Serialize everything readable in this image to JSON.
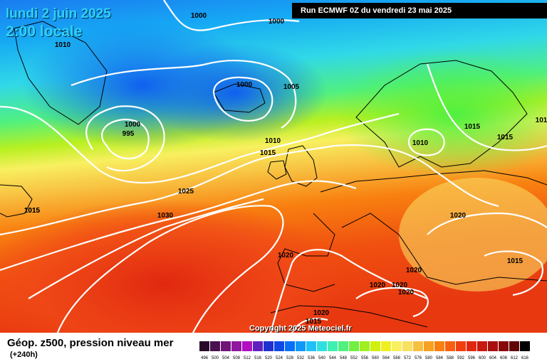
{
  "header": {
    "date": "lundi 2 juin 2025",
    "time": "2:00 locale",
    "run": "Run ECMWF 0Z du vendredi 23 mai 2025"
  },
  "copyright": "Copyright 2025 Meteociel.fr",
  "footer": {
    "title": "Géop. z500, pression niveau mer",
    "subtitle": "(+240h)"
  },
  "legend": {
    "values": [
      "496",
      "500",
      "504",
      "508",
      "512",
      "516",
      "520",
      "524",
      "528",
      "532",
      "536",
      "540",
      "544",
      "548",
      "552",
      "556",
      "560",
      "564",
      "568",
      "572",
      "576",
      "580",
      "584",
      "588",
      "592",
      "596",
      "600",
      "604",
      "608",
      "612",
      "616"
    ],
    "colors": [
      "#2a0a2a",
      "#4a1050",
      "#701478",
      "#9018a0",
      "#b010c0",
      "#6020c0",
      "#2030d0",
      "#1048e8",
      "#0870f8",
      "#1098f8",
      "#20c0f8",
      "#30e0e0",
      "#40f0b0",
      "#50f080",
      "#70f040",
      "#a0f020",
      "#d0f010",
      "#f0f020",
      "#f8f060",
      "#f8e060",
      "#f8c040",
      "#f8a020",
      "#f88010",
      "#f86010",
      "#f04010",
      "#e02810",
      "#c81810",
      "#a81010",
      "#880808",
      "#600404",
      "#000000"
    ]
  },
  "isobars": [
    {
      "value": "1000",
      "label": "1000"
    },
    {
      "value": "1000",
      "label": "1000"
    },
    {
      "value": "1010",
      "label": "1010"
    },
    {
      "value": "1000",
      "label": "1000"
    },
    {
      "value": "1005",
      "label": "1005"
    },
    {
      "value": "1000",
      "label": "1000"
    },
    {
      "value": "995",
      "label": "995"
    },
    {
      "value": "1010",
      "label": "1010"
    },
    {
      "value": "1015",
      "label": "1015"
    },
    {
      "value": "1010",
      "label": "1010"
    },
    {
      "value": "1015",
      "label": "1015"
    },
    {
      "value": "1015",
      "label": "1015"
    },
    {
      "value": "1015",
      "label": "1015"
    },
    {
      "value": "101",
      "label": "101"
    },
    {
      "value": "1025",
      "label": "1025"
    },
    {
      "value": "1015",
      "label": "1015"
    },
    {
      "value": "1030",
      "label": "1030"
    },
    {
      "value": "1020",
      "label": "1020"
    },
    {
      "value": "1020",
      "label": "1020"
    },
    {
      "value": "1020",
      "label": "1020"
    },
    {
      "value": "1015",
      "label": "1015"
    },
    {
      "value": "1020",
      "label": "1020"
    },
    {
      "value": "1020",
      "label": "1020"
    },
    {
      "value": "1020",
      "label": "1020"
    },
    {
      "value": "1020",
      "label": "1020"
    },
    {
      "value": "1015",
      "label": "1015"
    }
  ]
}
